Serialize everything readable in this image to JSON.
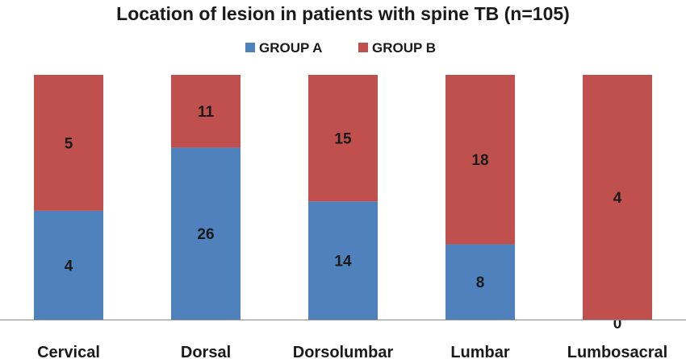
{
  "chart_data": {
    "type": "bar",
    "stacked": true,
    "percent_stacked": true,
    "title": "Location of lesion in patients with spine TB (n=105)",
    "xlabel": "",
    "ylabel": "",
    "categories": [
      "Cervical",
      "Dorsal",
      "Dorsolumbar",
      "Lumbar",
      "Lumbosacral"
    ],
    "series": [
      {
        "name": "GROUP A",
        "values": [
          4,
          26,
          14,
          8,
          0
        ],
        "color": "#4f81bd"
      },
      {
        "name": "GROUP B",
        "values": [
          5,
          11,
          15,
          18,
          4
        ],
        "color": "#c0504d"
      }
    ],
    "legend_position": "top",
    "grid": false,
    "data_labels": true
  }
}
